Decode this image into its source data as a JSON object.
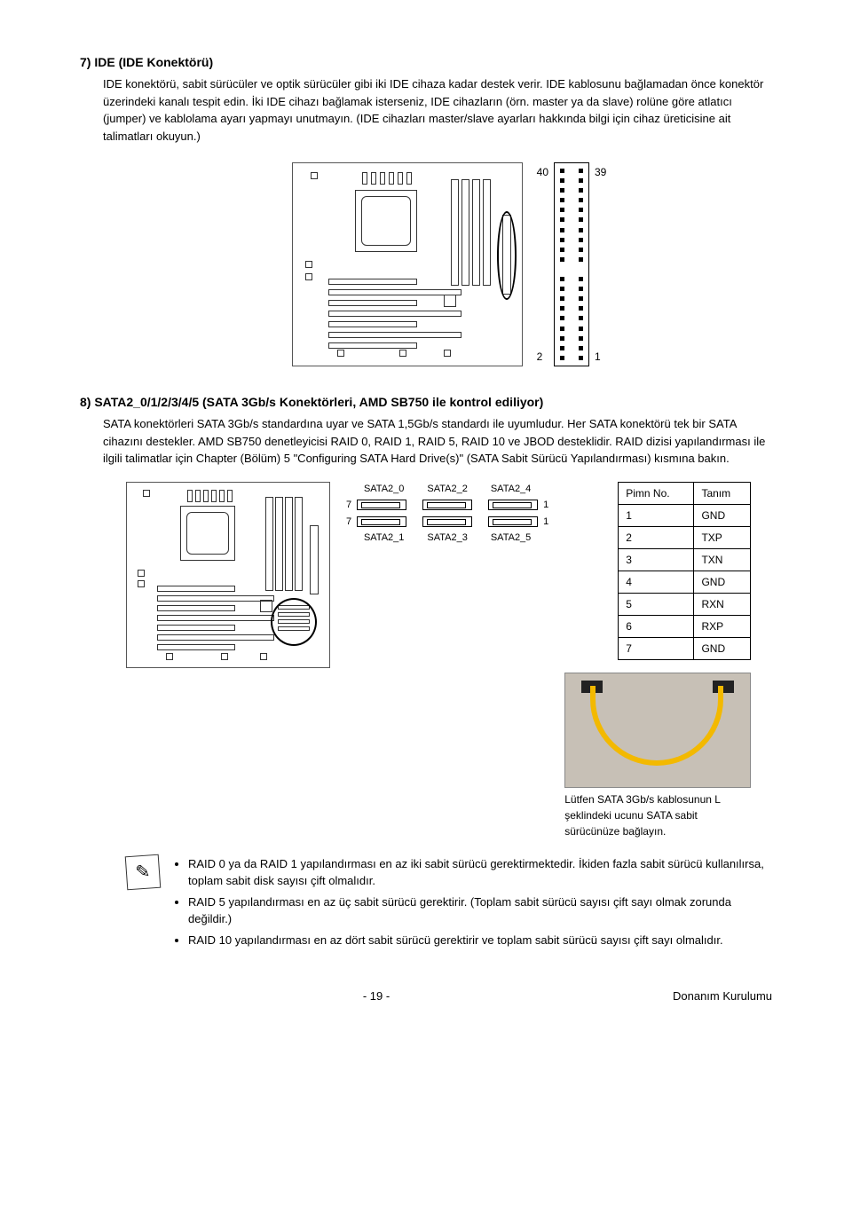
{
  "section7": {
    "number": "7)",
    "title": "IDE (IDE Konektörü)",
    "body": "IDE konektörü, sabit sürücüler ve optik sürücüler gibi iki IDE cihaza kadar destek verir. IDE kablosunu bağlamadan önce konektör üzerindeki kanalı tespit edin. İki IDE cihazı bağlamak isterseniz, IDE cihazların (örn. master ya da slave) rolüne göre atlatıcı (jumper) ve kablolama ayarı yapmayı unutmayın. (IDE cihazları master/slave ayarları hakkında bilgi için cihaz üreticisine ait talimatları okuyun.)",
    "ide_connector": {
      "pins_total": 40,
      "label_top_left": "40",
      "label_top_right": "39",
      "label_bot_left": "2",
      "label_bot_right": "1",
      "rows": 20,
      "missing_pin_row": 10
    }
  },
  "section8": {
    "number": "8)",
    "title": "SATA2_0/1/2/3/4/5 (SATA 3Gb/s Konektörleri, AMD SB750 ile kontrol ediliyor)",
    "body": "SATA konektörleri SATA 3Gb/s standardına uyar ve SATA 1,5Gb/s standardı ile uyumludur. Her SATA konektörü tek bir SATA cihazını destekler. AMD SB750 denetleyicisi RAID 0, RAID 1, RAID 5, RAID 10 ve JBOD desteklidir. RAID dizisi yapılandırması ile ilgili talimatlar için Chapter (Bölüm) 5 \"Configuring SATA Hard Drive(s)\" (SATA Sabit Sürücü Yapılandırması) kısmına bakın.",
    "sata_ports": {
      "top_labels": [
        "SATA2_0",
        "SATA2_2",
        "SATA2_4"
      ],
      "bottom_labels": [
        "SATA2_1",
        "SATA2_3",
        "SATA2_5"
      ],
      "left_pin_top": "7",
      "left_pin_bot": "7",
      "right_pin_top": "1",
      "right_pin_bot": "1"
    },
    "pin_table": {
      "head_pin": "Pimn No.",
      "head_def": "Tanım",
      "rows": [
        [
          "1",
          "GND"
        ],
        [
          "2",
          "TXP"
        ],
        [
          "3",
          "TXN"
        ],
        [
          "4",
          "GND"
        ],
        [
          "5",
          "RXN"
        ],
        [
          "6",
          "RXP"
        ],
        [
          "7",
          "GND"
        ]
      ]
    },
    "cable_caption": "Lütfen SATA 3Gb/s kablosunun L şeklindeki ucunu SATA sabit sürücünüze bağlayın.",
    "notes": [
      "RAID 0 ya da RAID 1 yapılandırması en az iki sabit sürücü gerektirmektedir. İkiden fazla sabit sürücü kullanılırsa, toplam sabit disk sayısı çift olmalıdır.",
      "RAID 5 yapılandırması en az üç sabit sürücü gerektirir. (Toplam sabit sürücü sayısı çift sayı olmak zorunda değildir.)",
      "RAID 10 yapılandırması en az dört sabit sürücü gerektirir ve toplam sabit sürücü sayısı çift sayı olmalıdır."
    ]
  },
  "footer": {
    "page": "- 19 -",
    "section": "Donanım Kurulumu"
  },
  "colors": {
    "text": "#000000",
    "cable": "#f3b900",
    "photo_bg": "#c7c0b6"
  }
}
